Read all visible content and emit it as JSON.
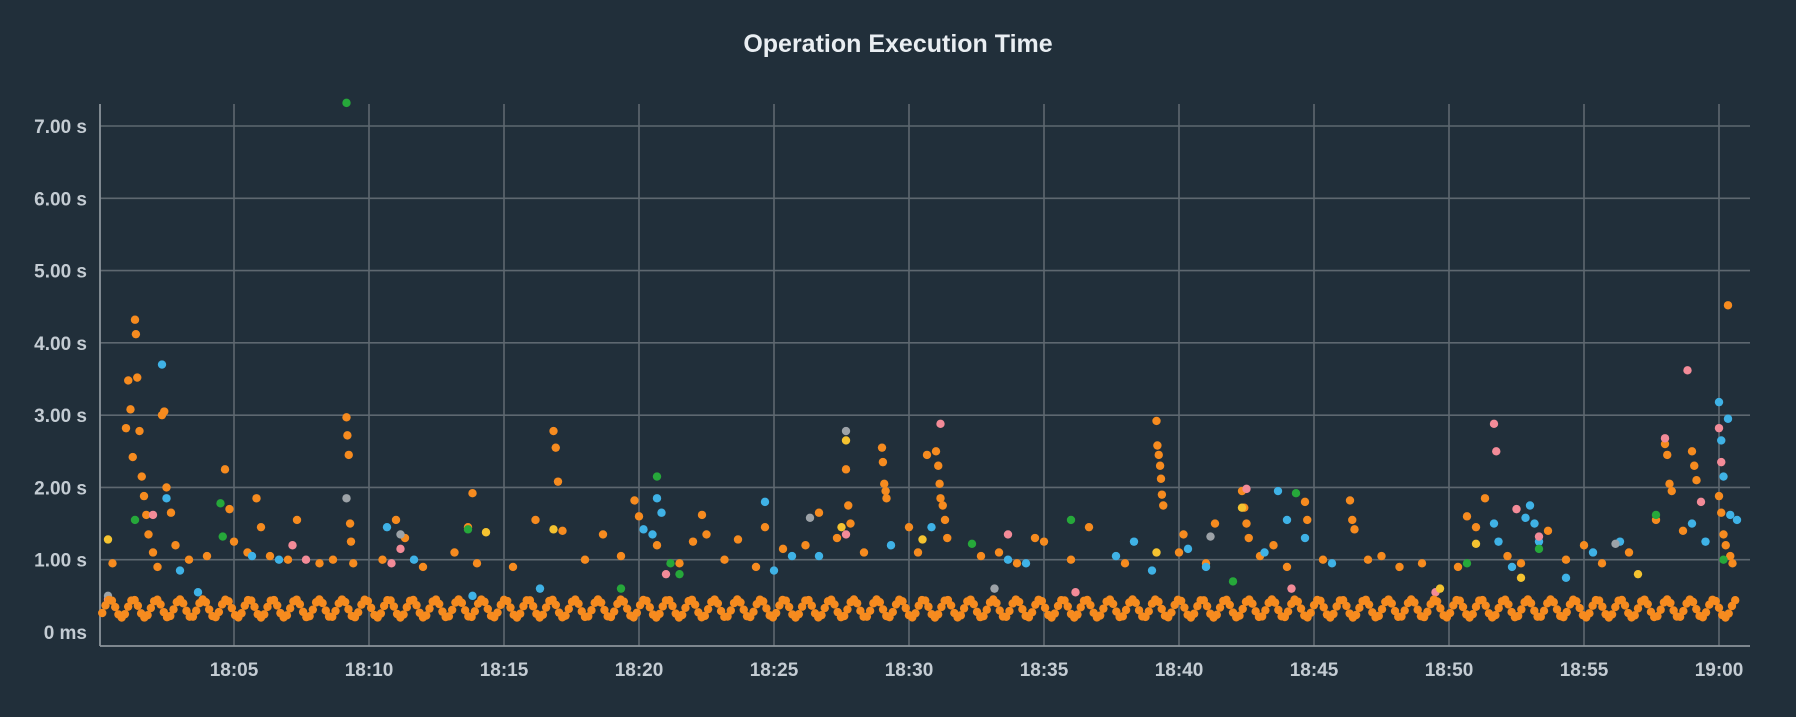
{
  "chart_data": {
    "type": "scatter",
    "title": "Operation Execution Time",
    "xlabel": "",
    "ylabel": "",
    "x_domain": [
      "18:00",
      "19:01"
    ],
    "y_domain_seconds": [
      0,
      7.0
    ],
    "y_ticks": [
      {
        "value": 0,
        "label": "0 ms"
      },
      {
        "value": 1,
        "label": "1.00 s"
      },
      {
        "value": 2,
        "label": "2.00 s"
      },
      {
        "value": 3,
        "label": "3.00 s"
      },
      {
        "value": 4,
        "label": "4.00 s"
      },
      {
        "value": 5,
        "label": "5.00 s"
      },
      {
        "value": 6,
        "label": "6.00 s"
      },
      {
        "value": 7,
        "label": "7.00 s"
      }
    ],
    "x_ticks": [
      "18:05",
      "18:10",
      "18:15",
      "18:20",
      "18:25",
      "18:30",
      "18:35",
      "18:40",
      "18:45",
      "18:50",
      "18:55",
      "19:00"
    ],
    "grid": true,
    "legend": "none",
    "colors": {
      "orange": "#f68b1f",
      "blue": "#3fb2e6",
      "pink": "#f38b98",
      "green": "#26a83a",
      "yellow": "#f5c330",
      "gray": "#9da3a8"
    },
    "series": [
      {
        "color": "orange",
        "points": [
          [
            "18:00:30",
            0.95
          ],
          [
            "18:01:00",
            2.82
          ],
          [
            "18:01:05",
            3.48
          ],
          [
            "18:01:10",
            3.08
          ],
          [
            "18:01:15",
            2.42
          ],
          [
            "18:01:20",
            4.32
          ],
          [
            "18:01:22",
            4.12
          ],
          [
            "18:01:25",
            3.52
          ],
          [
            "18:01:30",
            2.78
          ],
          [
            "18:01:35",
            2.15
          ],
          [
            "18:01:40",
            1.88
          ],
          [
            "18:01:45",
            1.62
          ],
          [
            "18:01:50",
            1.35
          ],
          [
            "18:02:00",
            1.1
          ],
          [
            "18:02:10",
            0.9
          ],
          [
            "18:02:20",
            3.0
          ],
          [
            "18:02:25",
            3.05
          ],
          [
            "18:02:30",
            2.0
          ],
          [
            "18:02:40",
            1.65
          ],
          [
            "18:02:50",
            1.2
          ],
          [
            "18:03:20",
            1.0
          ],
          [
            "18:04:00",
            1.05
          ],
          [
            "18:04:40",
            2.25
          ],
          [
            "18:04:50",
            1.7
          ],
          [
            "18:05:00",
            1.25
          ],
          [
            "18:05:30",
            1.1
          ],
          [
            "18:05:50",
            1.85
          ],
          [
            "18:06:00",
            1.45
          ],
          [
            "18:06:20",
            1.05
          ],
          [
            "18:07:00",
            1.0
          ],
          [
            "18:07:20",
            1.55
          ],
          [
            "18:08:10",
            0.95
          ],
          [
            "18:08:40",
            1.0
          ],
          [
            "18:09:10",
            2.97
          ],
          [
            "18:09:12",
            2.72
          ],
          [
            "18:09:15",
            2.45
          ],
          [
            "18:09:18",
            1.5
          ],
          [
            "18:09:20",
            1.25
          ],
          [
            "18:09:25",
            0.95
          ],
          [
            "18:10:30",
            1.0
          ],
          [
            "18:11:00",
            1.55
          ],
          [
            "18:11:20",
            1.3
          ],
          [
            "18:12:00",
            0.9
          ],
          [
            "18:13:10",
            1.1
          ],
          [
            "18:13:40",
            1.45
          ],
          [
            "18:13:50",
            1.92
          ],
          [
            "18:14:00",
            0.95
          ],
          [
            "18:15:20",
            0.9
          ],
          [
            "18:16:10",
            1.55
          ],
          [
            "18:16:50",
            2.78
          ],
          [
            "18:16:55",
            2.55
          ],
          [
            "18:17:00",
            2.08
          ],
          [
            "18:17:10",
            1.4
          ],
          [
            "18:18:00",
            1.0
          ],
          [
            "18:18:40",
            1.35
          ],
          [
            "18:19:20",
            1.05
          ],
          [
            "18:19:50",
            1.82
          ],
          [
            "18:20:00",
            1.6
          ],
          [
            "18:20:40",
            1.2
          ],
          [
            "18:21:30",
            0.95
          ],
          [
            "18:22:00",
            1.25
          ],
          [
            "18:22:20",
            1.62
          ],
          [
            "18:22:30",
            1.35
          ],
          [
            "18:23:10",
            1.0
          ],
          [
            "18:23:40",
            1.28
          ],
          [
            "18:24:20",
            0.9
          ],
          [
            "18:24:40",
            1.45
          ],
          [
            "18:25:20",
            1.15
          ],
          [
            "18:26:10",
            1.2
          ],
          [
            "18:26:40",
            1.65
          ],
          [
            "18:27:20",
            1.3
          ],
          [
            "18:27:40",
            2.25
          ],
          [
            "18:27:45",
            1.75
          ],
          [
            "18:27:50",
            1.5
          ],
          [
            "18:28:20",
            1.1
          ],
          [
            "18:29:00",
            2.55
          ],
          [
            "18:29:02",
            2.35
          ],
          [
            "18:29:05",
            2.05
          ],
          [
            "18:29:08",
            1.95
          ],
          [
            "18:29:10",
            1.85
          ],
          [
            "18:30:00",
            1.45
          ],
          [
            "18:30:20",
            1.1
          ],
          [
            "18:30:40",
            2.45
          ],
          [
            "18:31:00",
            2.5
          ],
          [
            "18:31:05",
            2.3
          ],
          [
            "18:31:08",
            2.05
          ],
          [
            "18:31:10",
            1.85
          ],
          [
            "18:31:15",
            1.75
          ],
          [
            "18:31:20",
            1.55
          ],
          [
            "18:31:25",
            1.3
          ],
          [
            "18:32:40",
            1.05
          ],
          [
            "18:33:20",
            1.1
          ],
          [
            "18:34:00",
            0.95
          ],
          [
            "18:34:40",
            1.3
          ],
          [
            "18:35:00",
            1.25
          ],
          [
            "18:36:00",
            1.0
          ],
          [
            "18:36:40",
            1.45
          ],
          [
            "18:38:00",
            0.95
          ],
          [
            "18:39:10",
            2.92
          ],
          [
            "18:39:12",
            2.58
          ],
          [
            "18:39:15",
            2.45
          ],
          [
            "18:39:18",
            2.3
          ],
          [
            "18:39:20",
            2.12
          ],
          [
            "18:39:22",
            1.9
          ],
          [
            "18:39:25",
            1.75
          ],
          [
            "18:40:00",
            1.1
          ],
          [
            "18:40:10",
            1.35
          ],
          [
            "18:41:00",
            0.95
          ],
          [
            "18:41:20",
            1.5
          ],
          [
            "18:42:20",
            1.95
          ],
          [
            "18:42:25",
            1.72
          ],
          [
            "18:42:30",
            1.5
          ],
          [
            "18:42:35",
            1.3
          ],
          [
            "18:43:00",
            1.05
          ],
          [
            "18:43:30",
            1.2
          ],
          [
            "18:44:00",
            0.9
          ],
          [
            "18:44:40",
            1.8
          ],
          [
            "18:44:45",
            1.55
          ],
          [
            "18:45:20",
            1.0
          ],
          [
            "18:46:20",
            1.82
          ],
          [
            "18:46:25",
            1.55
          ],
          [
            "18:46:30",
            1.42
          ],
          [
            "18:47:00",
            1.0
          ],
          [
            "18:47:30",
            1.05
          ],
          [
            "18:48:10",
            0.9
          ],
          [
            "18:49:00",
            0.95
          ],
          [
            "18:50:20",
            0.9
          ],
          [
            "18:50:40",
            1.6
          ],
          [
            "18:51:00",
            1.45
          ],
          [
            "18:51:20",
            1.85
          ],
          [
            "18:52:10",
            1.05
          ],
          [
            "18:52:40",
            0.95
          ],
          [
            "18:53:40",
            1.4
          ],
          [
            "18:54:20",
            1.0
          ],
          [
            "18:55:00",
            1.2
          ],
          [
            "18:55:40",
            0.95
          ],
          [
            "18:56:40",
            1.1
          ],
          [
            "18:57:40",
            1.55
          ],
          [
            "18:58:00",
            2.6
          ],
          [
            "18:58:05",
            2.45
          ],
          [
            "18:58:10",
            2.05
          ],
          [
            "18:58:15",
            1.95
          ],
          [
            "18:58:40",
            1.4
          ],
          [
            "18:59:00",
            2.5
          ],
          [
            "18:59:05",
            2.3
          ],
          [
            "18:59:10",
            2.1
          ],
          [
            "19:00:00",
            1.88
          ],
          [
            "19:00:05",
            1.65
          ],
          [
            "19:00:10",
            1.35
          ],
          [
            "19:00:15",
            1.2
          ],
          [
            "19:00:20",
            4.52
          ],
          [
            "19:00:25",
            1.05
          ],
          [
            "19:00:30",
            0.95
          ]
        ]
      },
      {
        "color": "blue",
        "points": [
          [
            "18:02:20",
            3.7
          ],
          [
            "18:02:30",
            1.85
          ],
          [
            "18:03:00",
            0.85
          ],
          [
            "18:03:40",
            0.55
          ],
          [
            "18:05:40",
            1.05
          ],
          [
            "18:06:40",
            1.0
          ],
          [
            "18:10:40",
            1.45
          ],
          [
            "18:11:40",
            1.0
          ],
          [
            "18:13:50",
            0.5
          ],
          [
            "18:16:20",
            0.6
          ],
          [
            "18:20:10",
            1.42
          ],
          [
            "18:20:30",
            1.35
          ],
          [
            "18:20:40",
            1.85
          ],
          [
            "18:20:50",
            1.65
          ],
          [
            "18:24:40",
            1.8
          ],
          [
            "18:25:00",
            0.85
          ],
          [
            "18:25:40",
            1.05
          ],
          [
            "18:26:40",
            1.05
          ],
          [
            "18:29:20",
            1.2
          ],
          [
            "18:30:50",
            1.45
          ],
          [
            "18:33:40",
            1.0
          ],
          [
            "18:34:20",
            0.95
          ],
          [
            "18:37:40",
            1.05
          ],
          [
            "18:38:20",
            1.25
          ],
          [
            "18:39:00",
            0.85
          ],
          [
            "18:40:20",
            1.15
          ],
          [
            "18:41:00",
            0.9
          ],
          [
            "18:43:10",
            1.1
          ],
          [
            "18:43:40",
            1.95
          ],
          [
            "18:44:00",
            1.55
          ],
          [
            "18:44:40",
            1.3
          ],
          [
            "18:45:40",
            0.95
          ],
          [
            "18:51:40",
            1.5
          ],
          [
            "18:51:50",
            1.25
          ],
          [
            "18:52:20",
            0.9
          ],
          [
            "18:52:50",
            1.58
          ],
          [
            "18:53:00",
            1.75
          ],
          [
            "18:53:10",
            1.5
          ],
          [
            "18:53:20",
            1.25
          ],
          [
            "18:54:20",
            0.75
          ],
          [
            "18:55:20",
            1.1
          ],
          [
            "18:56:20",
            1.25
          ],
          [
            "18:59:00",
            1.5
          ],
          [
            "18:59:30",
            1.25
          ],
          [
            "19:00:00",
            3.18
          ],
          [
            "19:00:05",
            2.65
          ],
          [
            "19:00:10",
            2.15
          ],
          [
            "19:00:20",
            2.95
          ],
          [
            "19:00:25",
            1.62
          ],
          [
            "19:00:40",
            1.55
          ]
        ]
      },
      {
        "color": "pink",
        "points": [
          [
            "18:00:20",
            0.45
          ],
          [
            "18:02:00",
            1.62
          ],
          [
            "18:07:10",
            1.2
          ],
          [
            "18:07:40",
            1.0
          ],
          [
            "18:10:50",
            0.95
          ],
          [
            "18:11:10",
            1.15
          ],
          [
            "18:21:00",
            0.8
          ],
          [
            "18:27:40",
            1.35
          ],
          [
            "18:31:10",
            2.88
          ],
          [
            "18:33:40",
            1.35
          ],
          [
            "18:42:30",
            1.98
          ],
          [
            "18:51:40",
            2.88
          ],
          [
            "18:51:45",
            2.5
          ],
          [
            "18:52:30",
            1.7
          ],
          [
            "18:53:20",
            1.32
          ],
          [
            "18:58:00",
            2.68
          ],
          [
            "18:58:50",
            3.62
          ],
          [
            "18:59:20",
            1.8
          ],
          [
            "19:00:00",
            2.82
          ],
          [
            "19:00:05",
            2.35
          ],
          [
            "18:49:30",
            0.55
          ],
          [
            "18:36:10",
            0.55
          ],
          [
            "18:44:10",
            0.6
          ]
        ]
      },
      {
        "color": "green",
        "points": [
          [
            "18:09:10",
            7.32
          ],
          [
            "18:04:30",
            1.78
          ],
          [
            "18:04:35",
            1.32
          ],
          [
            "18:01:20",
            1.55
          ],
          [
            "18:13:40",
            1.42
          ],
          [
            "18:20:40",
            2.15
          ],
          [
            "18:21:10",
            0.95
          ],
          [
            "18:21:30",
            0.8
          ],
          [
            "18:32:20",
            1.22
          ],
          [
            "18:36:00",
            1.55
          ],
          [
            "18:44:20",
            1.92
          ],
          [
            "18:50:40",
            0.95
          ],
          [
            "18:53:20",
            1.15
          ],
          [
            "18:57:40",
            1.62
          ],
          [
            "19:00:10",
            1.0
          ],
          [
            "18:19:20",
            0.6
          ],
          [
            "18:42:00",
            0.7
          ]
        ]
      },
      {
        "color": "yellow",
        "points": [
          [
            "18:00:20",
            1.28
          ],
          [
            "18:14:20",
            1.38
          ],
          [
            "18:27:40",
            2.65
          ],
          [
            "18:30:30",
            1.28
          ],
          [
            "18:39:10",
            1.1
          ],
          [
            "18:42:20",
            1.72
          ],
          [
            "18:51:00",
            1.22
          ],
          [
            "18:52:40",
            0.75
          ],
          [
            "18:57:00",
            0.8
          ],
          [
            "18:16:50",
            1.42
          ],
          [
            "18:27:30",
            1.45
          ],
          [
            "18:49:40",
            0.6
          ]
        ]
      },
      {
        "color": "gray",
        "points": [
          [
            "18:09:10",
            1.85
          ],
          [
            "18:27:40",
            2.78
          ],
          [
            "18:26:20",
            1.58
          ],
          [
            "18:11:10",
            1.35
          ],
          [
            "18:41:10",
            1.32
          ],
          [
            "18:56:10",
            1.22
          ],
          [
            "18:33:10",
            0.6
          ],
          [
            "18:00:20",
            0.5
          ]
        ]
      }
    ]
  }
}
